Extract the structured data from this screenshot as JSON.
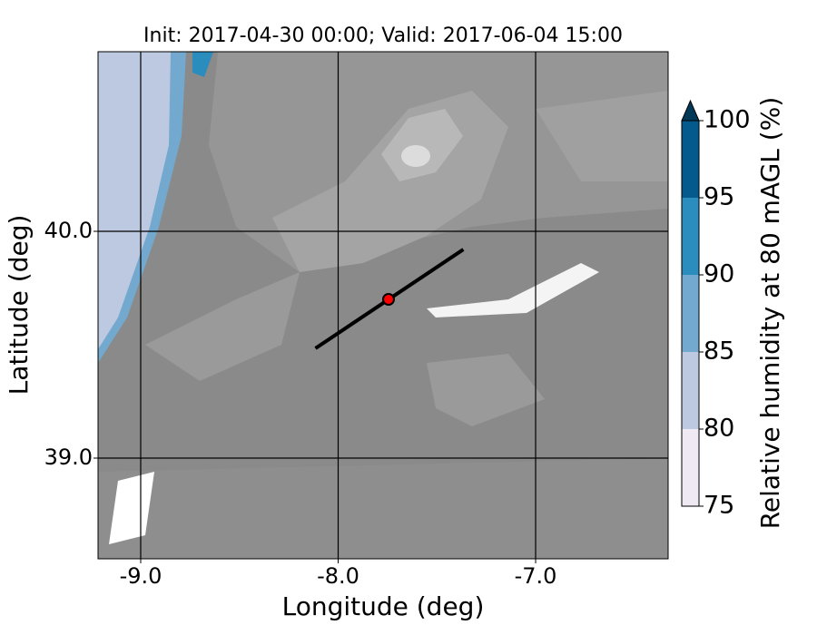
{
  "chart_data": {
    "type": "map",
    "title": "Init: 2017-04-30 00:00; Valid: 2017-06-04 15:00",
    "x_label": "Longitude (deg)",
    "y_label": "Latitude (deg)",
    "xlim": [
      -9.216,
      -6.329
    ],
    "ylim": [
      38.556,
      40.792
    ],
    "xticks": [
      {
        "value": -9,
        "label": "-9.0"
      },
      {
        "value": -8,
        "label": "-8.0"
      },
      {
        "value": -7,
        "label": "-7.0"
      }
    ],
    "yticks": [
      {
        "value": 39,
        "label": "39.0"
      },
      {
        "value": 40,
        "label": "40.0"
      }
    ],
    "grid": true,
    "transect": {
      "lon": [
        -8.115,
        -7.366
      ],
      "lat": [
        39.484,
        39.92
      ],
      "color": "#000000"
    },
    "point": {
      "lon": -7.745,
      "lat": 39.7,
      "color": "#ff0000"
    },
    "colorbar": {
      "label": "Relative humidity at 80 mAGL (%)",
      "boundaries": [
        75,
        80,
        85,
        90,
        95,
        100
      ],
      "colors": [
        "#efe9f3",
        "#bdc9e1",
        "#74a9cf",
        "#2b8cbe",
        "#045a8d"
      ],
      "extend": "max",
      "extend_color": "#023858",
      "ticks": [
        75,
        80,
        85,
        90,
        95,
        100
      ]
    }
  }
}
